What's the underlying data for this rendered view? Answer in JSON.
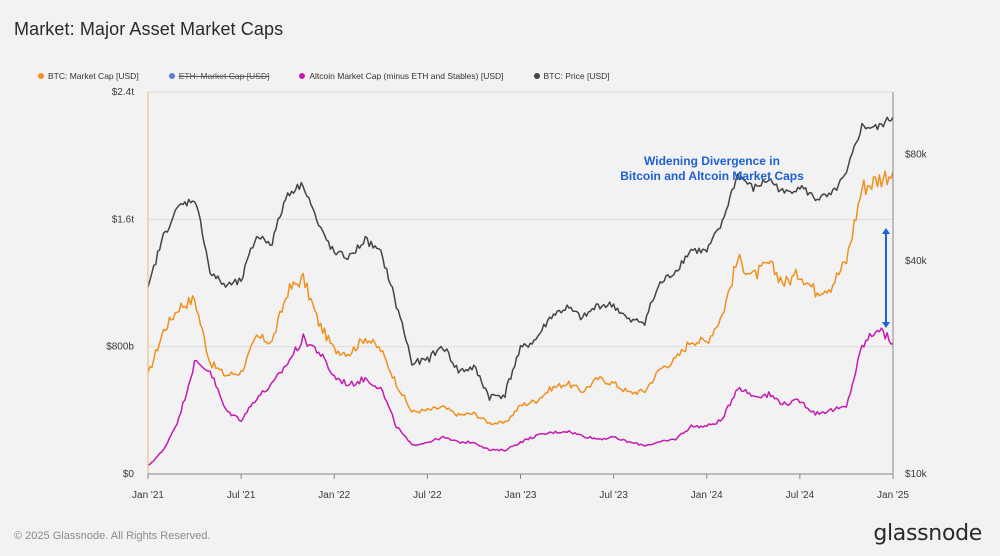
{
  "header": {
    "title": "Market: Major Asset Market Caps"
  },
  "legend": [
    {
      "label": "BTC: Market Cap [USD]",
      "color": "#f0901e",
      "struck": false
    },
    {
      "label": "ETH: Market Cap [USD]",
      "color": "#5b7fd6",
      "struck": true
    },
    {
      "label": "Altcoin Market Cap (minus ETH and Stables) [USD]",
      "color": "#c61ab0",
      "struck": false
    },
    {
      "label": "BTC: Price [USD]",
      "color": "#444444",
      "struck": false
    }
  ],
  "footer": {
    "copyright": "© 2025 Glassnode. All Rights Reserved.",
    "brand": "glassnode"
  },
  "chart_data": {
    "type": "line",
    "x_tick_labels": [
      "Jan '21",
      "Jul '21",
      "Jan '22",
      "Jul '22",
      "Jan '23",
      "Jul '23",
      "Jan '24",
      "Jul '24",
      "Jan '25"
    ],
    "left_axis": {
      "tick_labels": [
        "$0",
        "$800b",
        "$1.6t",
        "$2.4t"
      ],
      "ticks": [
        0,
        800,
        1600,
        2400
      ],
      "range": [
        0,
        2400
      ],
      "unit": "billion USD"
    },
    "right_axis": {
      "tick_labels": [
        "$10k",
        "$40k",
        "$80k"
      ],
      "ticks": [
        10,
        40,
        80
      ],
      "range": [
        10,
        120
      ],
      "scale": "log",
      "unit": "thousand USD"
    },
    "grid": "horizontal",
    "legend_position": "top-left",
    "annotation": {
      "lines": [
        "Widening Divergence in",
        "Bitcoin and Altcoin Market Caps"
      ],
      "color": "#1f5fd6"
    },
    "series": [
      {
        "name": "BTC: Market Cap [USD]",
        "axis": "left",
        "color": "#f0901e",
        "x": [
          "2021-01",
          "2021-02",
          "2021-03",
          "2021-04",
          "2021-05",
          "2021-06",
          "2021-07",
          "2021-08",
          "2021-09",
          "2021-10",
          "2021-11",
          "2021-12",
          "2022-01",
          "2022-02",
          "2022-03",
          "2022-04",
          "2022-05",
          "2022-06",
          "2022-07",
          "2022-08",
          "2022-09",
          "2022-10",
          "2022-11",
          "2022-12",
          "2023-01",
          "2023-02",
          "2023-03",
          "2023-04",
          "2023-05",
          "2023-06",
          "2023-07",
          "2023-08",
          "2023-09",
          "2023-10",
          "2023-11",
          "2023-12",
          "2024-01",
          "2024-02",
          "2024-03",
          "2024-04",
          "2024-05",
          "2024-06",
          "2024-07",
          "2024-08",
          "2024-09",
          "2024-10",
          "2024-11",
          "2024-12",
          "2025-01"
        ],
        "values": [
          620,
          900,
          1050,
          1100,
          700,
          620,
          640,
          860,
          830,
          1150,
          1230,
          950,
          780,
          760,
          860,
          780,
          570,
          390,
          400,
          420,
          370,
          380,
          320,
          320,
          430,
          460,
          540,
          570,
          520,
          600,
          570,
          510,
          520,
          660,
          720,
          840,
          830,
          1000,
          1350,
          1240,
          1320,
          1200,
          1260,
          1150,
          1180,
          1340,
          1800,
          1850,
          1900
        ]
      },
      {
        "name": "Altcoin Market Cap (minus ETH and Stables) [USD]",
        "axis": "left",
        "color": "#c61ab0",
        "x": [
          "2021-01",
          "2021-02",
          "2021-03",
          "2021-04",
          "2021-05",
          "2021-06",
          "2021-07",
          "2021-08",
          "2021-09",
          "2021-10",
          "2021-11",
          "2021-12",
          "2022-01",
          "2022-02",
          "2022-03",
          "2022-04",
          "2022-05",
          "2022-06",
          "2022-07",
          "2022-08",
          "2022-09",
          "2022-10",
          "2022-11",
          "2022-12",
          "2023-01",
          "2023-02",
          "2023-03",
          "2023-04",
          "2023-05",
          "2023-06",
          "2023-07",
          "2023-08",
          "2023-09",
          "2023-10",
          "2023-11",
          "2023-12",
          "2024-01",
          "2024-02",
          "2024-03",
          "2024-04",
          "2024-05",
          "2024-06",
          "2024-07",
          "2024-08",
          "2024-09",
          "2024-10",
          "2024-11",
          "2024-12",
          "2025-01"
        ],
        "values": [
          50,
          150,
          350,
          700,
          650,
          400,
          340,
          480,
          560,
          700,
          850,
          770,
          610,
          560,
          600,
          540,
          300,
          180,
          200,
          230,
          200,
          200,
          150,
          150,
          200,
          240,
          260,
          270,
          240,
          220,
          230,
          200,
          180,
          200,
          220,
          300,
          300,
          340,
          550,
          490,
          500,
          440,
          460,
          380,
          400,
          420,
          800,
          920,
          820
        ]
      },
      {
        "name": "BTC: Price [USD]",
        "axis": "right",
        "color": "#444444",
        "x": [
          "2021-01",
          "2021-02",
          "2021-03",
          "2021-04",
          "2021-05",
          "2021-06",
          "2021-07",
          "2021-08",
          "2021-09",
          "2021-10",
          "2021-11",
          "2021-12",
          "2022-01",
          "2022-02",
          "2022-03",
          "2022-04",
          "2022-05",
          "2022-06",
          "2022-07",
          "2022-08",
          "2022-09",
          "2022-10",
          "2022-11",
          "2022-12",
          "2023-01",
          "2023-02",
          "2023-03",
          "2023-04",
          "2023-05",
          "2023-06",
          "2023-07",
          "2023-08",
          "2023-09",
          "2023-10",
          "2023-11",
          "2023-12",
          "2024-01",
          "2024-02",
          "2024-03",
          "2024-04",
          "2024-05",
          "2024-06",
          "2024-07",
          "2024-08",
          "2024-09",
          "2024-10",
          "2024-11",
          "2024-12",
          "2025-01"
        ],
        "values": [
          33,
          47,
          57,
          60,
          37,
          34,
          35,
          47,
          45,
          62,
          66,
          50,
          42,
          41,
          46,
          42,
          30,
          20.5,
          21,
          23,
          19.5,
          20,
          16.5,
          16.8,
          22.5,
          24,
          28,
          29.5,
          27.5,
          30,
          30,
          27,
          27,
          34.5,
          37.5,
          43,
          42.5,
          51,
          70,
          64,
          68,
          62,
          65,
          60,
          61,
          70,
          96,
          95,
          102
        ]
      }
    ]
  }
}
